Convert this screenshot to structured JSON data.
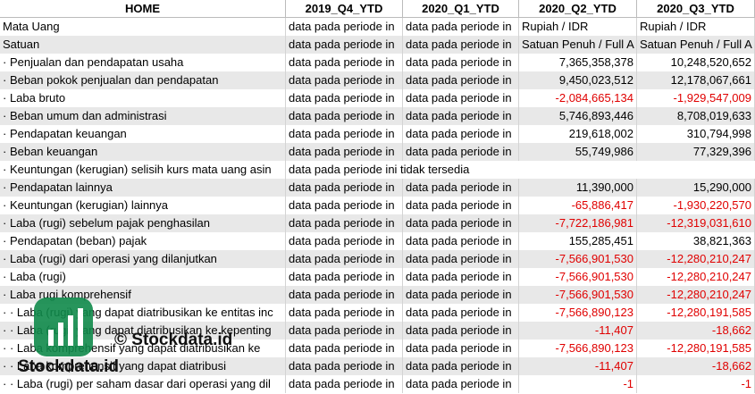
{
  "table": {
    "header": [
      "HOME",
      "2019_Q4_YTD",
      "2020_Q1_YTD",
      "2020_Q2_YTD",
      "2020_Q3_YTD"
    ],
    "rows": [
      [
        "Mata Uang",
        "data pada periode in",
        "data pada periode in",
        "Rupiah / IDR",
        "Rupiah / IDR"
      ],
      [
        "Satuan",
        "data pada periode in",
        "data pada periode in",
        "Satuan Penuh / Full A",
        "Satuan Penuh / Full A"
      ],
      [
        "· Penjualan dan pendapatan usaha",
        "data pada periode in",
        "data pada periode in",
        "7,365,358,378",
        "10,248,520,652"
      ],
      [
        "· Beban pokok penjualan dan pendapatan",
        "data pada periode in",
        "data pada periode in",
        "9,450,023,512",
        "12,178,067,661"
      ],
      [
        "· Laba bruto",
        "data pada periode in",
        "data pada periode in",
        "-2,084,665,134",
        "-1,929,547,009"
      ],
      [
        "· Beban umum dan administrasi",
        "data pada periode in",
        "data pada periode in",
        "5,746,893,446",
        "8,708,019,633"
      ],
      [
        "· Pendapatan keuangan",
        "data pada periode in",
        "data pada periode in",
        "219,618,002",
        "310,794,998"
      ],
      [
        "· Beban keuangan",
        "data pada periode in",
        "data pada periode in",
        "55,749,986",
        "77,329,396"
      ],
      [
        "· Keuntungan (kerugian) selisih kurs mata uang asin",
        "data pada periode ini tidak tersedia",
        null,
        null,
        null
      ],
      [
        "· Pendapatan lainnya",
        "data pada periode in",
        "data pada periode in",
        "11,390,000",
        "15,290,000"
      ],
      [
        "· Keuntungan (kerugian) lainnya",
        "data pada periode in",
        "data pada periode in",
        "-65,886,417",
        "-1,930,220,570"
      ],
      [
        "· Laba (rugi) sebelum pajak penghasilan",
        "data pada periode in",
        "data pada periode in",
        "-7,722,186,981",
        "-12,319,031,610"
      ],
      [
        "· Pendapatan (beban) pajak",
        "data pada periode in",
        "data pada periode in",
        "155,285,451",
        "38,821,363"
      ],
      [
        "· Laba (rugi) dari operasi yang dilanjutkan",
        "data pada periode in",
        "data pada periode in",
        "-7,566,901,530",
        "-12,280,210,247"
      ],
      [
        "· Laba (rugi)",
        "data pada periode in",
        "data pada periode in",
        "-7,566,901,530",
        "-12,280,210,247"
      ],
      [
        "· Laba rugi komprehensif",
        "data pada periode in",
        "data pada periode in",
        "-7,566,901,530",
        "-12,280,210,247"
      ],
      [
        "· · Laba (rugi) yang dapat diatribusikan ke entitas inc",
        "data pada periode in",
        "data pada periode in",
        "-7,566,890,123",
        "-12,280,191,585"
      ],
      [
        "· · Laba (rugi) yang dapat diatribusikan ke kepenting",
        "data pada periode in",
        "data pada periode in",
        "-11,407",
        "-18,662"
      ],
      [
        "· · Laba komprehensif yang dapat diatribusikan ke",
        "data pada periode in",
        "data pada periode in",
        "-7,566,890,123",
        "-12,280,191,585"
      ],
      [
        "· · Laba komprehensif yang dapat diatribusi",
        "data pada periode in",
        "data pada periode in",
        "-11,407",
        "-18,662"
      ],
      [
        "· · Laba (rugi) per saham dasar dari operasi yang dil",
        "data pada periode in",
        "data pada periode in",
        "-1",
        "-1"
      ]
    ]
  },
  "watermark": {
    "caption": "© Stockdata.id",
    "logo_text": "Stockdata.id"
  }
}
